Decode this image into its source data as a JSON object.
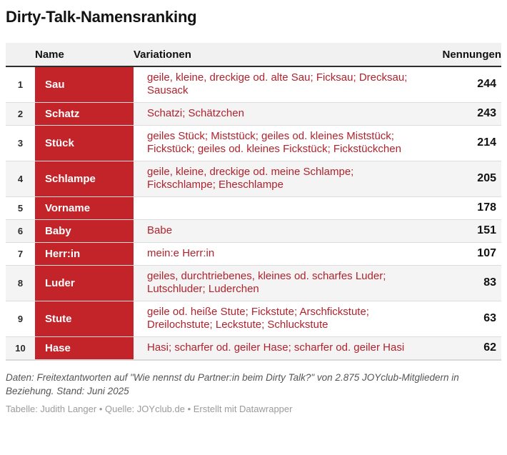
{
  "title": "Dirty-Talk-Namensranking",
  "table": {
    "headers": {
      "name": "Name",
      "variations": "Variationen",
      "mentions": "Nennungen"
    },
    "rows": [
      {
        "rank": "1",
        "name": "Sau",
        "variations": "geile, kleine, dreckige od. alte Sau; Ficksau; Drecksau; Sausack",
        "mentions": "244"
      },
      {
        "rank": "2",
        "name": "Schatz",
        "variations": "Schatzi; Schätzchen",
        "mentions": "243"
      },
      {
        "rank": "3",
        "name": "Stück",
        "variations": "geiles Stück; Miststück; geiles od. kleines Miststück; Fickstück; geiles od. kleines Fickstück; Fickstückchen",
        "mentions": "214"
      },
      {
        "rank": "4",
        "name": "Schlampe",
        "variations": "geile, kleine, dreckige od. meine Schlampe; Fickschlampe; Eheschlampe",
        "mentions": "205"
      },
      {
        "rank": "5",
        "name": "Vorname",
        "variations": "",
        "mentions": "178"
      },
      {
        "rank": "6",
        "name": "Baby",
        "variations": "Babe",
        "mentions": "151"
      },
      {
        "rank": "7",
        "name": "Herr:in",
        "variations": "mein:e Herr:in",
        "mentions": "107"
      },
      {
        "rank": "8",
        "name": "Luder",
        "variations": "geiles, durchtriebenes, kleines od. scharfes Luder; Lutschluder; Luderchen",
        "mentions": "83"
      },
      {
        "rank": "9",
        "name": "Stute",
        "variations": "geile od. heiße Stute; Fickstute; Arschfickstute; Dreilochstute; Leckstute; Schluckstute",
        "mentions": "63"
      },
      {
        "rank": "10",
        "name": "Hase",
        "variations": "Hasi; scharfer od. geiler Hase; scharfer od. geiler Hasi",
        "mentions": "62"
      }
    ]
  },
  "footer": {
    "notes": "Daten: Freitextantworten auf \"Wie nennst du Partner:in beim Dirty Talk?\" von 2.875 JOYclub-Mitgliedern in Beziehung. Stand: Juni 2025",
    "byline": {
      "table_label": "Tabelle: ",
      "table_author": "Judith Langer",
      "source_label": " • Quelle: ",
      "source": "JOYclub.de",
      "separator": " • ",
      "credit": "Erstellt mit Datawrapper"
    }
  },
  "colors": {
    "accent_red": "#c2242a",
    "red_text": "#b2222c",
    "header_bg": "#f1f1f1",
    "stripe_bg": "#f4f4f4",
    "border_dark": "#2e2e2e",
    "border_light": "#dddddd"
  },
  "chart_data": {
    "type": "table",
    "title": "Dirty-Talk-Namensranking",
    "columns": [
      "Name",
      "Variationen",
      "Nennungen"
    ],
    "categories": [
      "Sau",
      "Schatz",
      "Stück",
      "Schlampe",
      "Vorname",
      "Baby",
      "Herr:in",
      "Luder",
      "Stute",
      "Hase"
    ],
    "values": [
      244,
      243,
      214,
      205,
      178,
      151,
      107,
      83,
      63,
      62
    ],
    "variations": [
      "geile, kleine, dreckige od. alte Sau; Ficksau; Drecksau; Sausack",
      "Schatzi; Schätzchen",
      "geiles Stück; Miststück; geiles od. kleines Miststück; Fickstück; geiles od. kleines Fickstück; Fickstückchen",
      "geile, kleine, dreckige od. meine Schlampe; Fickschlampe; Eheschlampe",
      "",
      "Babe",
      "mein:e Herr:in",
      "geiles, durchtriebenes, kleines od. scharfes Luder; Lutschluder; Luderchen",
      "geile od. heiße Stute; Fickstute; Arschfickstute; Dreilochstute; Leckstute; Schluckstute",
      "Hasi; scharfer od. geiler Hase; scharfer od. geiler Hasi"
    ]
  }
}
